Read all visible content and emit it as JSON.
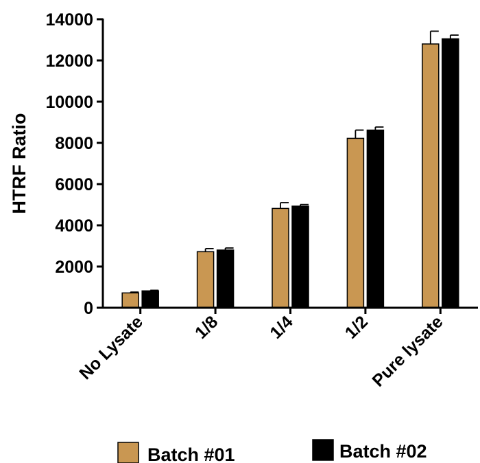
{
  "chart_data": {
    "type": "bar",
    "title": "",
    "xlabel": "",
    "ylabel": "HTRF Ratio",
    "ylim": [
      0,
      14000
    ],
    "yticks": [
      0,
      2000,
      4000,
      6000,
      8000,
      10000,
      12000,
      14000
    ],
    "categories": [
      "No Lysate",
      "1/8",
      "1/4",
      "1/2",
      "Pure lysate"
    ],
    "series": [
      {
        "name": "Batch #01",
        "color": "#c99752",
        "values": [
          720,
          2720,
          4820,
          8220,
          12800
        ],
        "errors": [
          40,
          150,
          280,
          400,
          620
        ]
      },
      {
        "name": "Batch #02",
        "color": "#000000",
        "values": [
          820,
          2800,
          4930,
          8620,
          13050
        ],
        "errors": [
          30,
          100,
          80,
          150,
          180
        ]
      }
    ],
    "legend_position": "bottom",
    "grid": false
  }
}
